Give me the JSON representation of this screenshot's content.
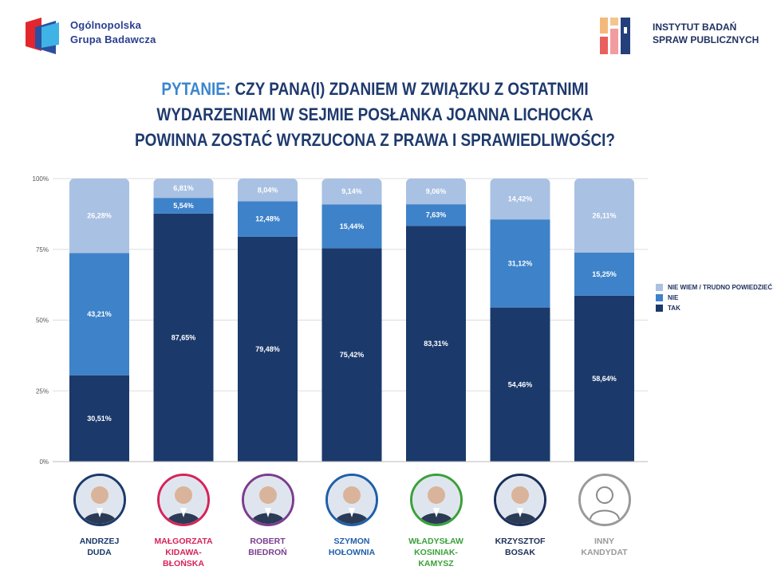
{
  "header": {
    "left_logo": {
      "line1": "Ogólnopolska",
      "line2": "Grupa Badawcza"
    },
    "right_logo": {
      "line1": "INSTYTUT BADAŃ",
      "line2": "SPRAW PUBLICZNYCH"
    }
  },
  "question": {
    "prefix": "PYTANIE:",
    "text": "CZY PANA(I) ZDANIEM W ZWIĄZKU Z OSTATNIMI WYDARZENIAMI W SEJMIE POSŁANKA JOANNA LICHOCKA POWINNA ZOSTAĆ WYRZUCONA Z PRAWA I SPRAWIEDLIWOŚCI?"
  },
  "chart_data": {
    "type": "bar",
    "stacked": true,
    "title": "CZY PANA(I) ZDANIEM W ZWIĄZKU Z OSTATNIMI WYDARZENIAMI W SEJMIE POSŁANKA JOANNA LICHOCKA POWINNA ZOSTAĆ WYRZUCONA Z PRAWA I SPRAWIEDLIWOŚCI?",
    "categories": [
      "ANDRZEJ DUDA",
      "MAŁGORZATA KIDAWA-BŁOŃSKA",
      "ROBERT BIEDROŃ",
      "SZYMON HOŁOWNIA",
      "WŁADYSŁAW KOSINIAK-KAMYSZ",
      "KRZYSZTOF BOSAK",
      "INNY KANDYDAT"
    ],
    "series": [
      {
        "name": "TAK",
        "color": "#1b3a6b",
        "values": [
          30.51,
          87.65,
          79.48,
          75.42,
          83.31,
          54.46,
          58.64
        ],
        "labels": [
          "30,51%",
          "87,65%",
          "79,48%",
          "75,42%",
          "83,31%",
          "54,46%",
          "58,64%"
        ]
      },
      {
        "name": "NIE",
        "color": "#3e82c9",
        "values": [
          43.21,
          5.54,
          12.48,
          15.44,
          7.63,
          31.12,
          15.25
        ],
        "labels": [
          "43,21%",
          "5,54%",
          "12,48%",
          "15,44%",
          "7,63%",
          "31,12%",
          "15,25%"
        ]
      },
      {
        "name": "NIE WIEM / TRUDNO POWIEDZIEĆ",
        "color": "#a9c1e3",
        "values": [
          26.28,
          6.81,
          8.04,
          9.14,
          9.06,
          14.42,
          26.11
        ],
        "labels": [
          "26,28%",
          "6,81%",
          "8,04%",
          "9,14%",
          "9,06%",
          "14,42%",
          "26,11%"
        ]
      }
    ],
    "yticks": [
      0,
      25,
      50,
      75,
      100
    ],
    "ytick_labels": [
      "0%",
      "25%",
      "50%",
      "75%",
      "100%"
    ],
    "ylim": [
      0,
      100
    ],
    "legend": [
      "NIE WIEM / TRUDNO POWIEDZIEĆ",
      "NIE",
      "TAK"
    ],
    "legend_position": "right"
  },
  "candidates": [
    {
      "line1": "ANDRZEJ",
      "line2": "DUDA",
      "color": "#1b3a6b"
    },
    {
      "line1": "MAŁGORZATA",
      "line2": "KIDAWA-BŁOŃSKA",
      "color": "#d6235a"
    },
    {
      "line1": "ROBERT",
      "line2": "BIEDROŃ",
      "color": "#7b3d8f"
    },
    {
      "line1": "SZYMON",
      "line2": "HOŁOWNIA",
      "color": "#1f5fa8"
    },
    {
      "line1": "WŁADYSŁAW",
      "line2": "KOSINIAK-KAMYSZ",
      "color": "#3aa13a"
    },
    {
      "line1": "KRZYSZTOF",
      "line2": "BOSAK",
      "color": "#1b2f5a"
    },
    {
      "line1": "INNY",
      "line2": "KANDYDAT",
      "color": "#9a9a9a"
    }
  ]
}
